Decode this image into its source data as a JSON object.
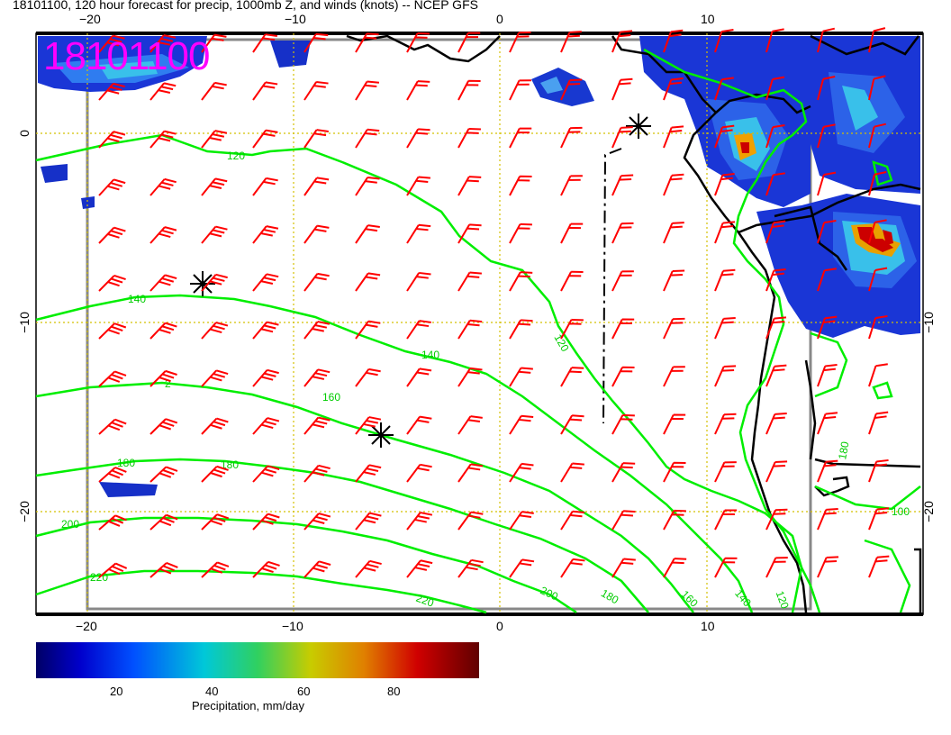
{
  "title": "18101100, 120 hour forecast for precip, 1000mb Z, and winds (knots) -- NCEP GFS",
  "stamp": "18101100",
  "axes": {
    "top": [
      "−20",
      "−10",
      "0",
      "10"
    ],
    "bottom": [
      "−20",
      "−10",
      "0",
      "10"
    ],
    "left": [
      "0",
      "−10",
      "−20"
    ],
    "right": [
      "−10",
      "−20"
    ]
  },
  "contours": [
    "120",
    "140",
    "160",
    "180",
    "200",
    "220",
    "120",
    "140",
    "160",
    "180",
    "200",
    "220",
    "180",
    "180"
  ],
  "colorbar": {
    "ticks": [
      "20",
      "40",
      "60",
      "80"
    ],
    "label": "Precipitation, mm/day"
  },
  "colors": {
    "contour": "#00ee00",
    "barb": "#ff0000",
    "grid": "#d4c000",
    "stamp": "#ff00ff"
  }
}
